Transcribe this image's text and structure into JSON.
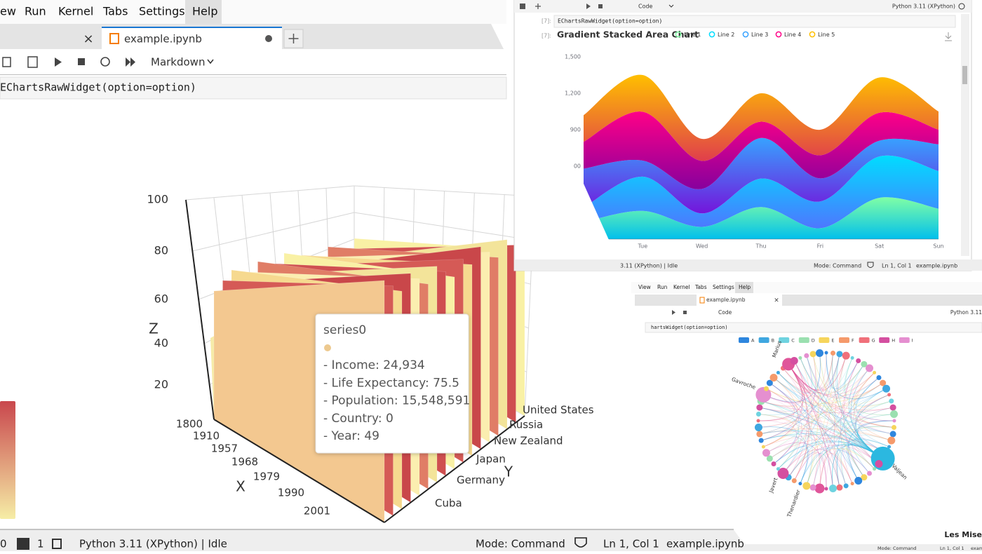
{
  "main_window": {
    "menu": [
      "ew",
      "Run",
      "Kernel",
      "Tabs",
      "Settings",
      "Help"
    ],
    "tab": "example.ipynb",
    "cell_type": "Markdown",
    "code": "EChartsRawWidget(option=option)",
    "chart_3d": {
      "z_label": "Z",
      "x_label": "X",
      "y_label": "Y",
      "z_ticks": [
        100,
        80,
        60,
        40,
        20
      ],
      "x_ticks": [
        1800,
        1910,
        1957,
        1968,
        1979,
        1990,
        2001
      ],
      "y_categories": [
        "United States",
        "Russia",
        "New Zealand",
        "Japan",
        "Germany",
        "Cuba"
      ]
    },
    "tooltip": {
      "title": "series0",
      "lines": [
        "- Income: 24,934",
        "- Life Expectancy: 75.5",
        "- Population: 15,548,591",
        "- Country: 0",
        "- Year: 49"
      ]
    },
    "status": {
      "count_a": "0",
      "count_b": "1",
      "kernel": "Python 3.11 (XPython) | Idle",
      "mode": "Mode: Command",
      "position": "Ln 1, Col 1",
      "file": "example.ipynb"
    }
  },
  "chart_data": {
    "type": "area",
    "stacked": true,
    "title": "Gradient Stacked Area Chart",
    "categories": [
      null,
      "Tue",
      "Wed",
      "Thu",
      "Fri",
      "Sat",
      "Sun"
    ],
    "series": [
      {
        "name": "Line 1",
        "color": [
          "#80ffa5",
          "#01bfec"
        ],
        "values": [
          140,
          232,
          101,
          264,
          90,
          340,
          250
        ]
      },
      {
        "name": "Line 2",
        "color": [
          "#00ddff",
          "#4d77ff"
        ],
        "values": [
          120,
          282,
          111,
          234,
          220,
          340,
          310
        ]
      },
      {
        "name": "Line 3",
        "color": [
          "#37a2ff",
          "#7415db"
        ],
        "values": [
          320,
          132,
          201,
          334,
          190,
          130,
          220
        ]
      },
      {
        "name": "Line 4",
        "color": [
          "#ff0087",
          "#87009d"
        ],
        "values": [
          220,
          402,
          231,
          134,
          190,
          230,
          120
        ]
      },
      {
        "name": "Line 5",
        "color": [
          "#ffbf00",
          "#e03e4c"
        ],
        "values": [
          220,
          302,
          181,
          234,
          210,
          290,
          150
        ]
      }
    ],
    "ylim": [
      0,
      1500
    ],
    "yticks": [
      {
        "value": 600,
        "label": "00"
      },
      900,
      {
        "value": 1200,
        "label": "1,200"
      },
      {
        "value": 1500,
        "label": "1,500"
      }
    ]
  },
  "top_right_window": {
    "cell_type": "Code",
    "kernel": "Python 3.11 (XPython)",
    "prompts": [
      "[7]:",
      "[7]:"
    ],
    "code": "EChartsRawWidget(option=option)",
    "status": {
      "kernel": "3.11 (XPython) | Idle",
      "mode": "Mode: Command",
      "position": "Ln 1, Col 1",
      "file": "example.ipynb"
    }
  },
  "bottom_right_window": {
    "menu": [
      "View",
      "Run",
      "Kernel",
      "Tabs",
      "Settings",
      "Help"
    ],
    "tab": "example.ipynb",
    "cell_type": "Code",
    "kernel": "Python 3.11",
    "code": "hartsWidget(option=option)",
    "legend": [
      "A",
      "B",
      "C",
      "D",
      "E",
      "F",
      "G",
      "H",
      "I"
    ],
    "node_labels": [
      "Marius",
      "Gavroche",
      "Javert",
      "Thenardier",
      "Valjean"
    ],
    "title": "Les Mise",
    "status": {
      "mode": "Mode: Command",
      "position": "Ln 1, Col 1",
      "file": "exam"
    }
  }
}
